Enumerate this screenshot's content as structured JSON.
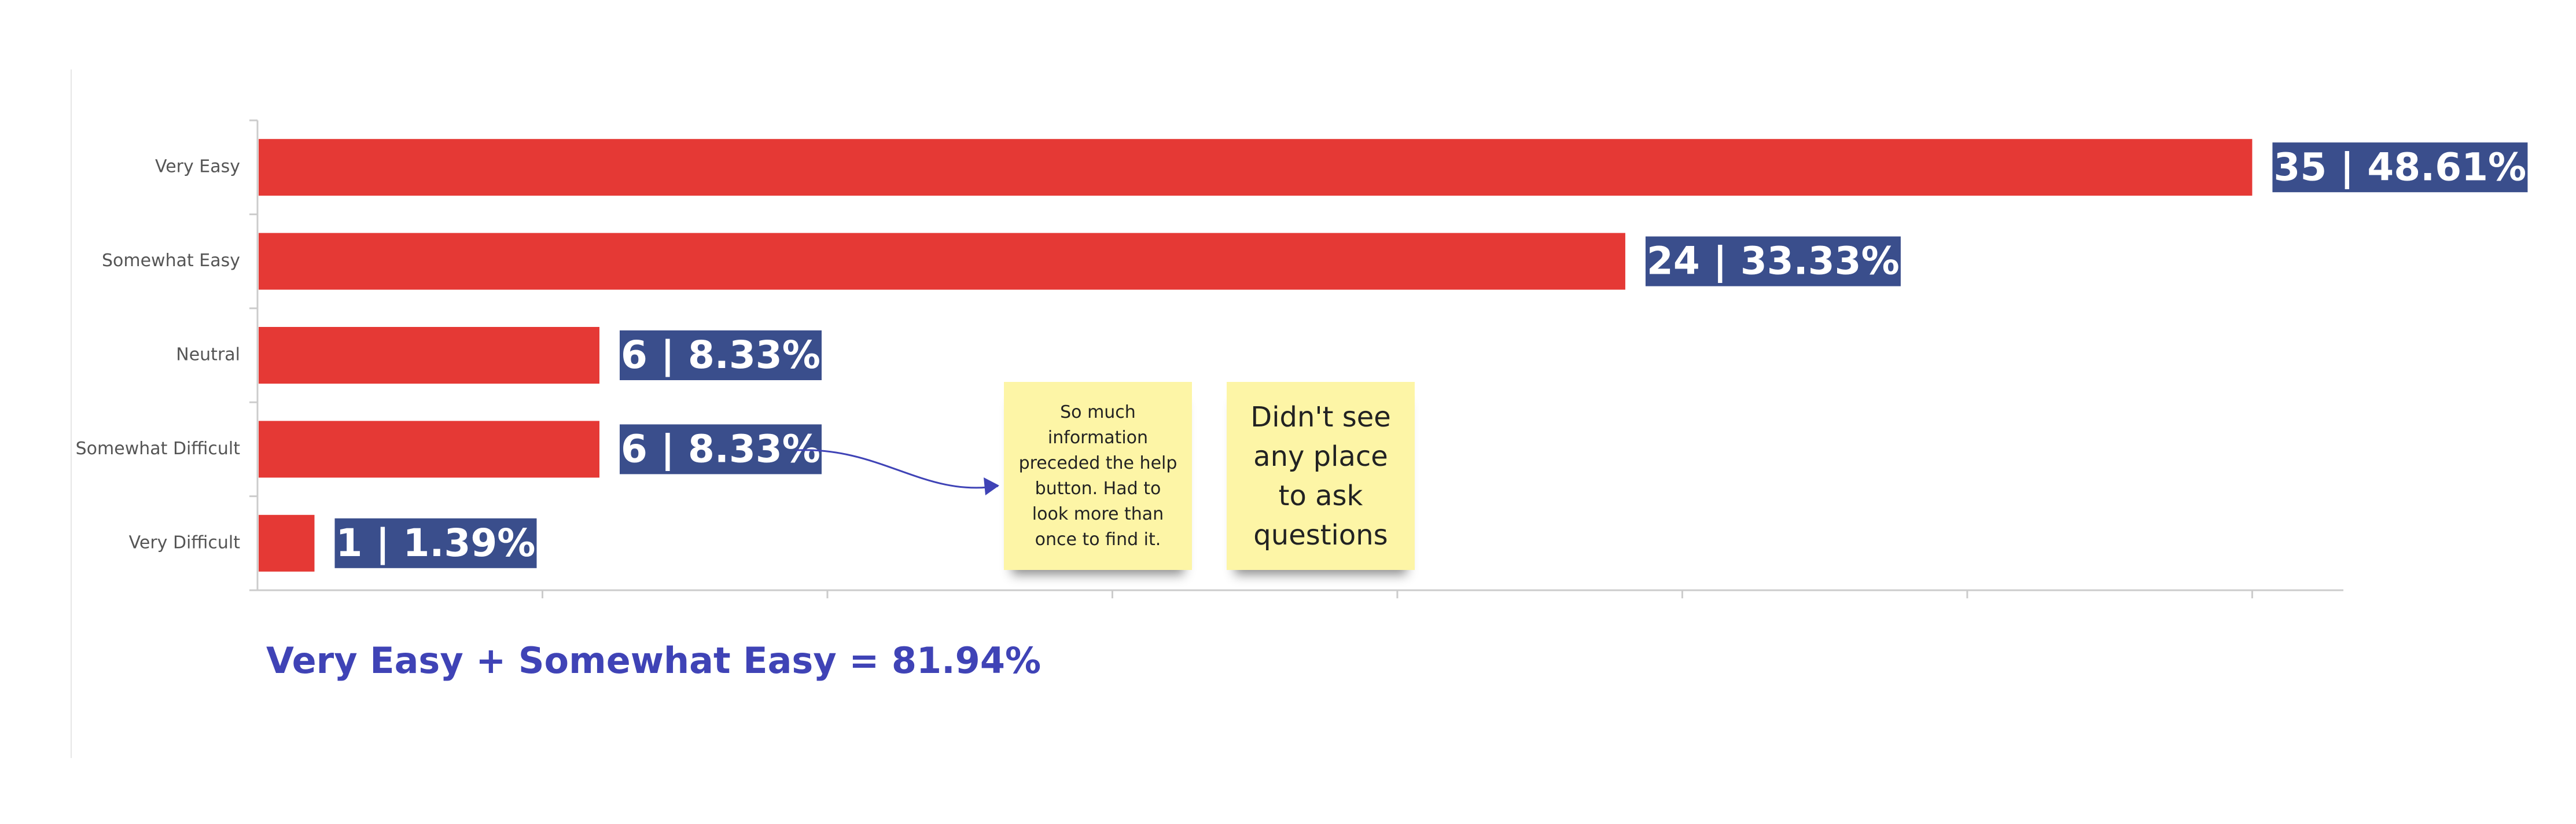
{
  "chart_data": {
    "type": "bar",
    "orientation": "horizontal",
    "categories": [
      "Very Easy",
      "Somewhat Easy",
      "Neutral",
      "Somewhat Difficult",
      "Very Difficult"
    ],
    "values": [
      35,
      24,
      6,
      6,
      1
    ],
    "percentages": [
      48.61,
      33.33,
      8.33,
      8.33,
      1.39
    ],
    "data_labels": [
      "35 | 48.61%",
      "24 | 33.33%",
      "6 | 8.33%",
      "6 | 8.33%",
      "1 | 1.39%"
    ],
    "xlim": [
      0,
      36.6
    ],
    "x_ticks": [
      0,
      5,
      10,
      15,
      20,
      25,
      30,
      35
    ],
    "x_tick_labels_shown": false,
    "grid": false,
    "legend": "none",
    "title": "",
    "xlabel": "",
    "ylabel": "",
    "bar_color": "#e53935",
    "label_box_color": "#3a4e8c"
  },
  "annotations": {
    "note_1": [
      "So much",
      "information",
      "preceded the help",
      "button. Had to",
      "look more than",
      "once to find it."
    ],
    "note_2": [
      "Didn't see",
      "any place",
      "to ask",
      "questions"
    ],
    "summary": "Very Easy + Somewhat Easy = 81.94%",
    "note_color": "#fdf5a6",
    "summary_color": "#3f43b6",
    "arrow_color": "#3f43b6"
  }
}
